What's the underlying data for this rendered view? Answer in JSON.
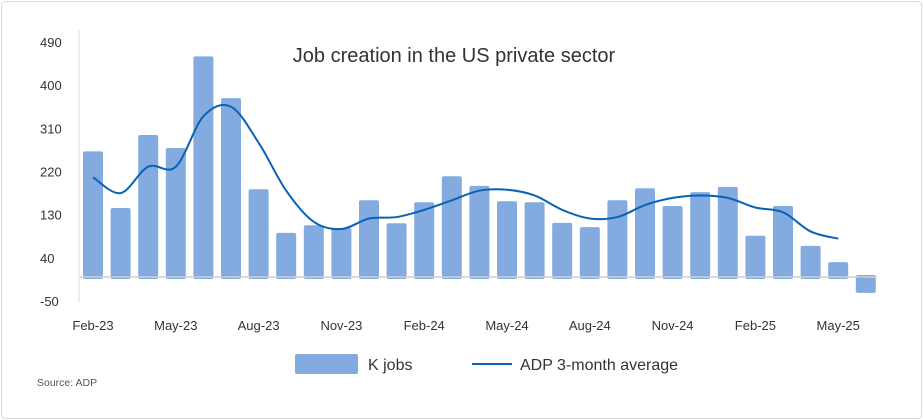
{
  "chart_data": {
    "type": "bar",
    "title": "Job creation in the US private sector",
    "xlabel": "",
    "ylabel": "",
    "ylim": [
      -50,
      490
    ],
    "yticks": [
      490,
      400,
      310,
      220,
      130,
      40,
      -50
    ],
    "xtick_labels": [
      "Feb-23",
      "May-23",
      "Aug-23",
      "Nov-23",
      "Feb-24",
      "May-24",
      "Aug-24",
      "Nov-24",
      "Feb-25",
      "May-25"
    ],
    "categories": [
      "Feb-23",
      "Mar-23",
      "Apr-23",
      "May-23",
      "Jun-23",
      "Jul-23",
      "Aug-23",
      "Sep-23",
      "Oct-23",
      "Nov-23",
      "Dec-23",
      "Jan-24",
      "Feb-24",
      "Mar-24",
      "Apr-24",
      "May-24",
      "Jun-24",
      "Jul-24",
      "Aug-24",
      "Sep-24",
      "Oct-24",
      "Nov-24",
      "Dec-24",
      "Jan-25",
      "Feb-25",
      "Mar-25",
      "Apr-25",
      "May-25",
      "Jun-25"
    ],
    "series": [
      {
        "name": "K jobs",
        "type": "bar",
        "color": "#84abe0",
        "values": [
          262,
          144,
          296,
          269,
          460,
          373,
          183,
          92,
          108,
          102,
          160,
          112,
          156,
          210,
          190,
          158,
          156,
          113,
          104,
          160,
          185,
          148,
          177,
          188,
          86,
          148,
          65,
          31,
          -33
        ]
      },
      {
        "name": "ADP 3-month average",
        "type": "line",
        "color": "#0a62b5",
        "values": [
          208,
          175,
          230,
          230,
          335,
          355,
          280,
          180,
          115,
          100,
          122,
          125,
          140,
          160,
          180,
          182,
          170,
          140,
          122,
          125,
          150,
          165,
          170,
          165,
          145,
          135,
          95,
          80,
          null
        ]
      }
    ],
    "grid": false,
    "legend": "bottom",
    "source": "Source: ADP"
  }
}
